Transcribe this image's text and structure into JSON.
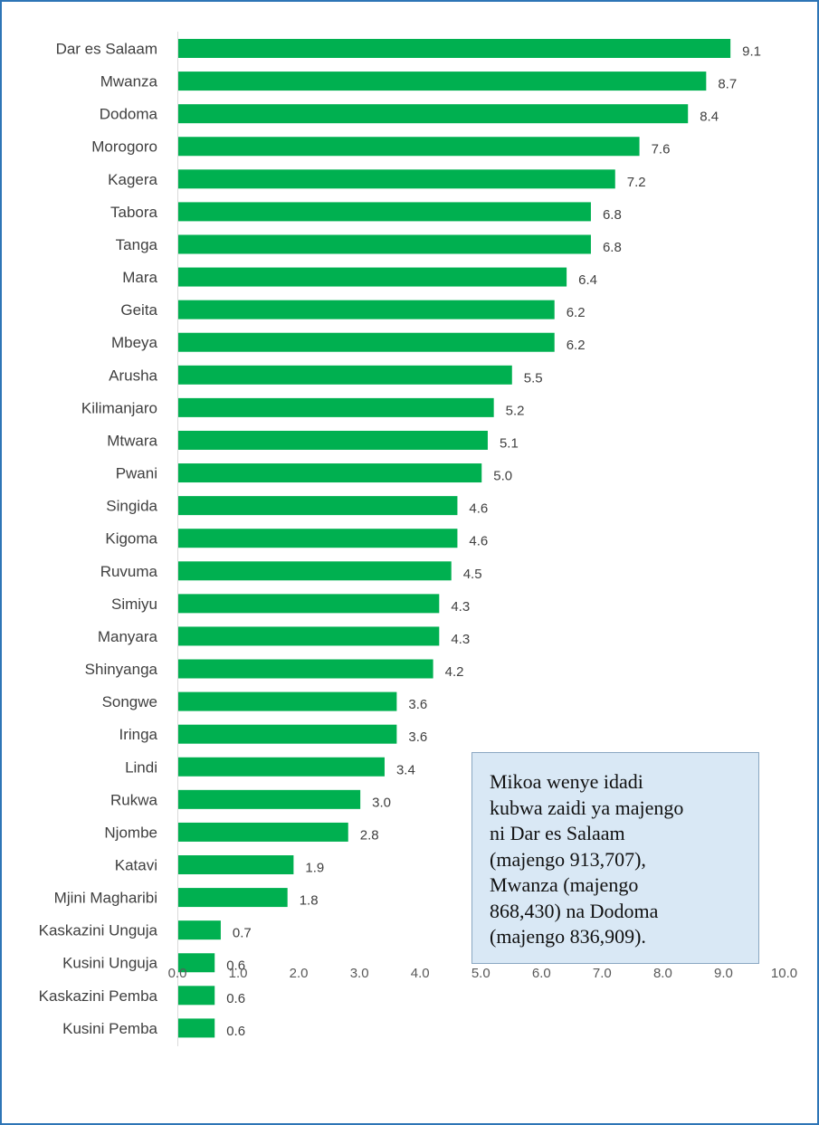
{
  "chart_data": {
    "type": "bar",
    "orientation": "horizontal",
    "categories": [
      "Dar es Salaam",
      "Mwanza",
      "Dodoma",
      "Morogoro",
      "Kagera",
      "Tabora",
      "Tanga",
      "Mara",
      "Geita",
      "Mbeya",
      "Arusha",
      "Kilimanjaro",
      "Mtwara",
      "Pwani",
      "Singida",
      "Kigoma",
      "Ruvuma",
      "Simiyu",
      "Manyara",
      "Shinyanga",
      "Songwe",
      "Iringa",
      "Lindi",
      "Rukwa",
      "Njombe",
      "Katavi",
      "Mjini Magharibi",
      "Kaskazini Unguja",
      "Kusini Unguja",
      "Kaskazini Pemba",
      "Kusini Pemba"
    ],
    "values": [
      9.1,
      8.7,
      8.4,
      7.6,
      7.2,
      6.8,
      6.8,
      6.4,
      6.2,
      6.2,
      5.5,
      5.2,
      5.1,
      5.0,
      4.6,
      4.6,
      4.5,
      4.3,
      4.3,
      4.2,
      3.6,
      3.6,
      3.4,
      3.0,
      2.8,
      1.9,
      1.8,
      0.7,
      0.6,
      0.6,
      0.6
    ],
    "value_labels": [
      "9.1",
      "8.7",
      "8.4",
      "7.6",
      "7.2",
      "6.8",
      "6.8",
      "6.4",
      "6.2",
      "6.2",
      "5.5",
      "5.2",
      "5.1",
      "5.0",
      "4.6",
      "4.6",
      "4.5",
      "4.3",
      "4.3",
      "4.2",
      "3.6",
      "3.6",
      "3.4",
      "3.0",
      "2.8",
      "1.9",
      "1.8",
      "0.7",
      "0.6",
      "0.6",
      "0.6"
    ],
    "xlim": [
      0,
      10
    ],
    "xticks": [
      "0.0",
      "1.0",
      "2.0",
      "3.0",
      "4.0",
      "5.0",
      "6.0",
      "7.0",
      "8.0",
      "9.0",
      "10.0"
    ],
    "grid": false,
    "bar_color": "#00b050",
    "title": "",
    "xlabel": "",
    "ylabel": ""
  },
  "annotation": {
    "lines": [
      "Mikoa wenye idadi",
      "kubwa zaidi ya majengo",
      "ni Dar es Salaam",
      "(majengo 913,707),",
      "Mwanza (majengo",
      "868,430) na Dodoma",
      "(majengo 836,909)."
    ]
  },
  "colors": {
    "frame": "#2e75b6",
    "note_background": "#d9e8f5"
  }
}
